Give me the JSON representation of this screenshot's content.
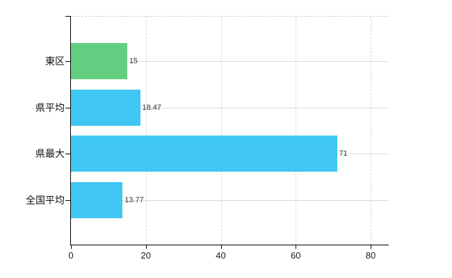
{
  "chart_data": {
    "type": "bar",
    "orientation": "horizontal",
    "title": "",
    "xlabel": "",
    "ylabel": "",
    "categories": [
      "東区",
      "県平均",
      "県最大",
      "全国平均"
    ],
    "values": [
      15,
      18.47,
      71,
      13.77
    ],
    "value_labels": [
      "15",
      "18.47",
      "71",
      "13.77"
    ],
    "bar_colors": [
      "#63CF80",
      "#3FC6F3",
      "#3FC6F3",
      "#3FC6F3"
    ],
    "x_ticks": [
      0,
      20,
      40,
      60,
      80
    ],
    "x_tick_labels": [
      "0",
      "20",
      "40",
      "60",
      "80"
    ],
    "xlim": [
      0,
      85
    ],
    "grid": true,
    "legend": "none",
    "colors": {
      "grid_vertical": "#d6d6d6",
      "grid_horizontal": "#dadada",
      "plot_top_border": "#cfcfcf",
      "axis": "#000000",
      "value_text": "#333333",
      "tick_text": "#1a1a1a",
      "category_text": "#111111",
      "background": "#ffffff"
    }
  }
}
